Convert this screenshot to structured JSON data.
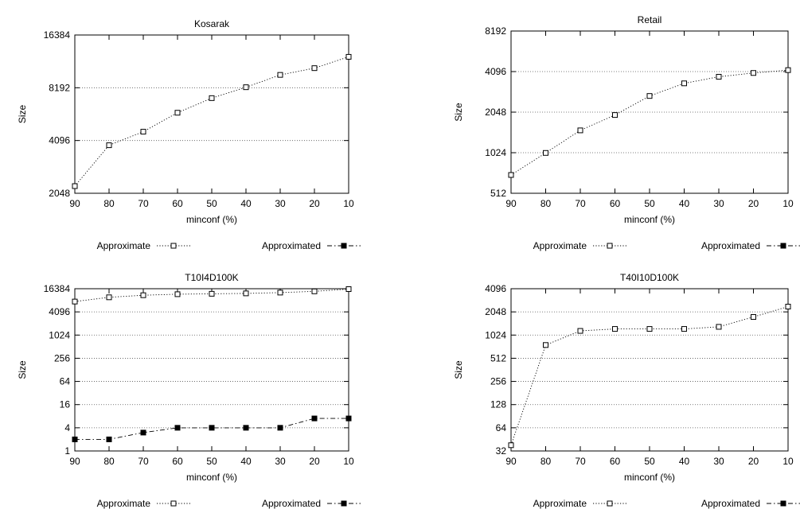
{
  "chart_data": [
    {
      "type": "line",
      "title": "Kosarak",
      "xlabel": "minconf (%)",
      "ylabel": "Size",
      "y_scale": "log2",
      "x_reversed": true,
      "ylim": [
        2048,
        16384
      ],
      "xlim": [
        90,
        10
      ],
      "yticks": [
        2048,
        4096,
        8192,
        16384
      ],
      "ytick_labels": [
        "2048",
        "4096",
        "8192",
        "16384"
      ],
      "xticks": [
        90,
        80,
        70,
        60,
        50,
        40,
        30,
        20,
        10
      ],
      "xtick_labels": [
        "90",
        "80",
        "70",
        "60",
        "50",
        "40",
        "30",
        "20",
        "10"
      ],
      "grid": "horizontal",
      "x": [
        90,
        80,
        70,
        60,
        50,
        40,
        30,
        20,
        10
      ],
      "series": [
        {
          "name": "Approximate",
          "style": "dotted",
          "marker": "open-square",
          "values": [
            2250,
            3850,
            4600,
            5900,
            7150,
            8250,
            9700,
            10600,
            12300
          ]
        }
      ],
      "legend": [
        {
          "label": "Approximate",
          "style": "dotted",
          "marker": "open-square"
        },
        {
          "label": "Approximated",
          "style": "dash-dot",
          "marker": "filled-square"
        }
      ],
      "legend_position": "below"
    },
    {
      "type": "line",
      "title": "Retail",
      "xlabel": "minconf (%)",
      "ylabel": "Size",
      "y_scale": "log2",
      "x_reversed": true,
      "ylim": [
        512,
        8192
      ],
      "xlim": [
        90,
        10
      ],
      "yticks": [
        512,
        1024,
        2048,
        4096,
        8192
      ],
      "ytick_labels": [
        "512",
        "1024",
        "2048",
        "4096",
        "8192"
      ],
      "xticks": [
        90,
        80,
        70,
        60,
        50,
        40,
        30,
        20,
        10
      ],
      "xtick_labels": [
        "90",
        "80",
        "70",
        "60",
        "50",
        "40",
        "30",
        "20",
        "10"
      ],
      "grid": "horizontal",
      "x": [
        90,
        80,
        70,
        60,
        50,
        40,
        30,
        20,
        10
      ],
      "series": [
        {
          "name": "Approximate",
          "style": "dotted",
          "marker": "open-square",
          "values": [
            700,
            1020,
            1500,
            1950,
            2700,
            3350,
            3750,
            4000,
            4200
          ]
        }
      ],
      "legend": [
        {
          "label": "Approximate",
          "style": "dotted",
          "marker": "open-square"
        },
        {
          "label": "Approximated",
          "style": "dash-dot",
          "marker": "filled-square"
        }
      ],
      "legend_position": "below"
    },
    {
      "type": "line",
      "title": "T10I4D100K",
      "xlabel": "minconf (%)",
      "ylabel": "Size",
      "y_scale": "log2",
      "x_reversed": true,
      "ylim": [
        1,
        16384
      ],
      "xlim": [
        90,
        10
      ],
      "yticks": [
        1,
        4,
        16,
        64,
        256,
        1024,
        4096,
        16384
      ],
      "ytick_labels": [
        "1",
        "4",
        "16",
        "64",
        "256",
        "1024",
        "4096",
        "16384"
      ],
      "xticks": [
        90,
        80,
        70,
        60,
        50,
        40,
        30,
        20,
        10
      ],
      "xtick_labels": [
        "90",
        "80",
        "70",
        "60",
        "50",
        "40",
        "30",
        "20",
        "10"
      ],
      "grid": "horizontal",
      "x": [
        90,
        80,
        70,
        60,
        50,
        40,
        30,
        20,
        10
      ],
      "series": [
        {
          "name": "Approximate",
          "style": "dotted",
          "marker": "open-square",
          "values": [
            7600,
            9800,
            11100,
            11800,
            12100,
            12400,
            13000,
            14000,
            16000
          ]
        },
        {
          "name": "Approximated",
          "style": "dash-dot",
          "marker": "filled-square",
          "values": [
            2,
            2,
            3,
            4,
            4,
            4,
            4,
            7,
            7
          ]
        }
      ],
      "legend": [
        {
          "label": "Approximate",
          "style": "dotted",
          "marker": "open-square"
        },
        {
          "label": "Approximated",
          "style": "dash-dot",
          "marker": "filled-square"
        }
      ],
      "legend_position": "below"
    },
    {
      "type": "line",
      "title": "T40I10D100K",
      "xlabel": "minconf (%)",
      "ylabel": "Size",
      "y_scale": "log2",
      "x_reversed": true,
      "ylim": [
        32,
        4096
      ],
      "xlim": [
        90,
        10
      ],
      "yticks": [
        32,
        64,
        128,
        256,
        512,
        1024,
        2048,
        4096
      ],
      "ytick_labels": [
        "32",
        "64",
        "128",
        "256",
        "512",
        "1024",
        "2048",
        "4096"
      ],
      "xticks": [
        90,
        80,
        70,
        60,
        50,
        40,
        30,
        20,
        10
      ],
      "xtick_labels": [
        "90",
        "80",
        "70",
        "60",
        "50",
        "40",
        "30",
        "20",
        "10"
      ],
      "grid": "horizontal",
      "x": [
        90,
        80,
        70,
        60,
        50,
        40,
        30,
        20,
        10
      ],
      "series": [
        {
          "name": "Approximate",
          "style": "dotted",
          "marker": "open-square",
          "values": [
            38,
            760,
            1160,
            1230,
            1230,
            1230,
            1310,
            1760,
            2400
          ]
        }
      ],
      "legend": [
        {
          "label": "Approximate",
          "style": "dotted",
          "marker": "open-square"
        },
        {
          "label": "Approximated",
          "style": "dash-dot",
          "marker": "filled-square"
        }
      ],
      "legend_position": "below"
    }
  ]
}
